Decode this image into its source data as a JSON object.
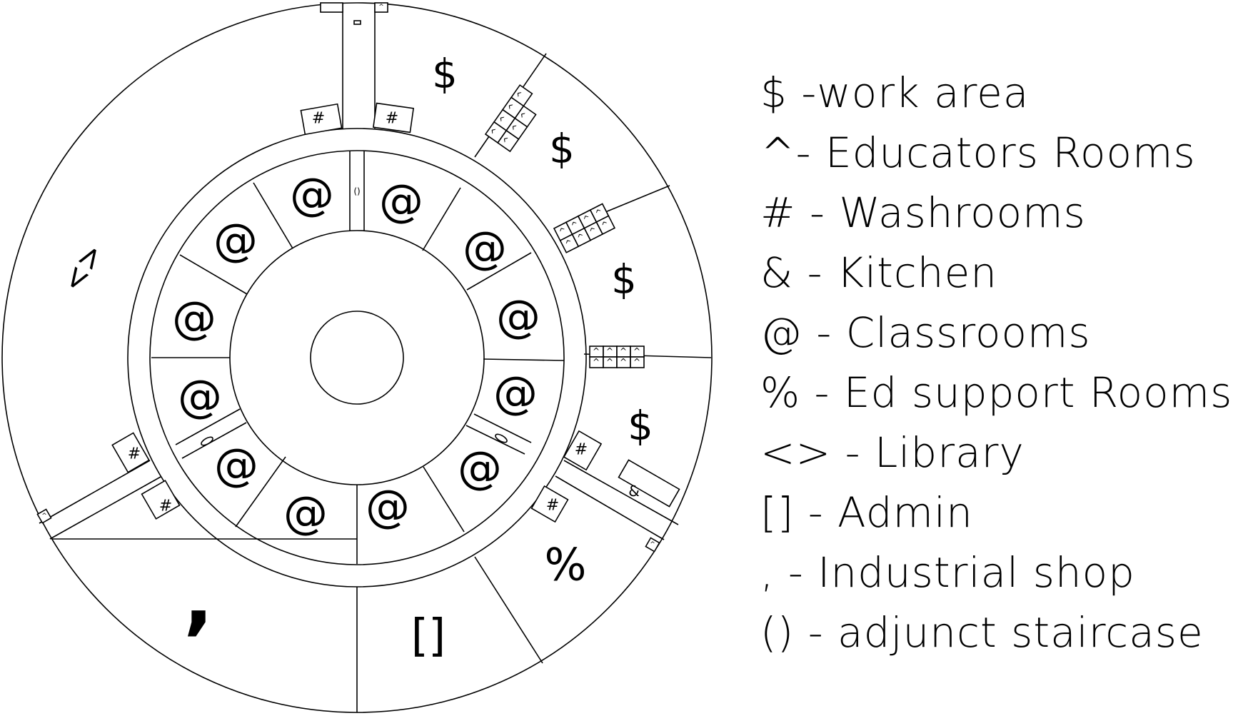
{
  "floor_plan": {
    "rooms": {
      "work_area": "$",
      "educators_room": "^",
      "washroom": "#",
      "kitchen": "&",
      "classroom": "@",
      "ed_support": "%",
      "library": "<>",
      "admin": "[]",
      "industrial_shop": ",",
      "staircase": "()"
    }
  },
  "legend": [
    "$ -work area",
    "^- Educators Rooms",
    "# - Washrooms",
    "& - Kitchen",
    "@ - Classrooms",
    "% - Ed support Rooms",
    "<> - Library",
    "[] - Admin",
    ", - Industrial shop",
    "() - adjunct staircase"
  ]
}
